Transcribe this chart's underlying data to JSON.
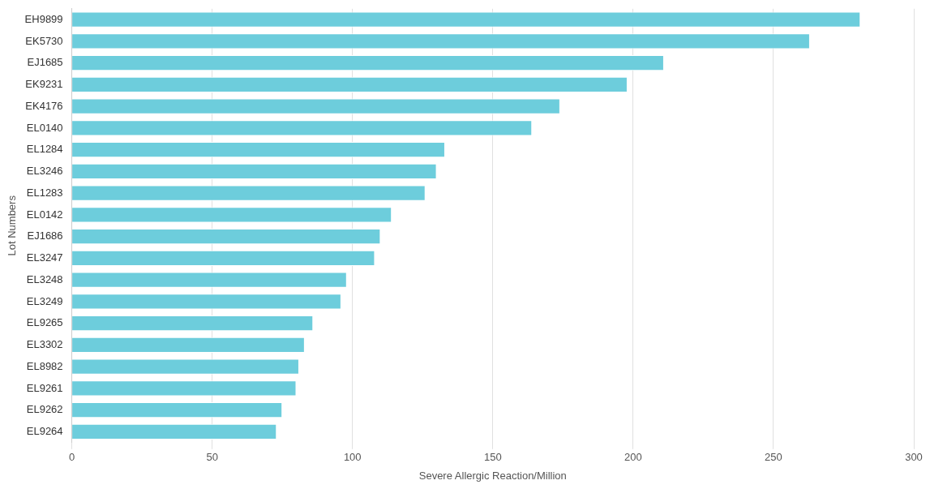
{
  "chart_data": {
    "type": "bar",
    "orientation": "horizontal",
    "xlabel": "Severe Allergic Reaction/Million",
    "ylabel": "Lot Numbers",
    "categories": [
      "EH9899",
      "EK5730",
      "EJ1685",
      "EK9231",
      "EK4176",
      "EL0140",
      "EL1284",
      "EL3246",
      "EL1283",
      "EL0142",
      "EJ1686",
      "EL3247",
      "EL3248",
      "EL3249",
      "EL9265",
      "EL3302",
      "EL8982",
      "EL9261",
      "EL9262",
      "EL9264"
    ],
    "values": [
      281,
      263,
      211,
      198,
      174,
      164,
      133,
      130,
      126,
      114,
      110,
      108,
      98,
      96,
      86,
      83,
      81,
      80,
      75,
      73
    ],
    "color": "#6dcddc",
    "xlim": [
      0,
      300
    ],
    "xticks": [
      0,
      50,
      100,
      150,
      200,
      250,
      300
    ],
    "grid": "x"
  }
}
